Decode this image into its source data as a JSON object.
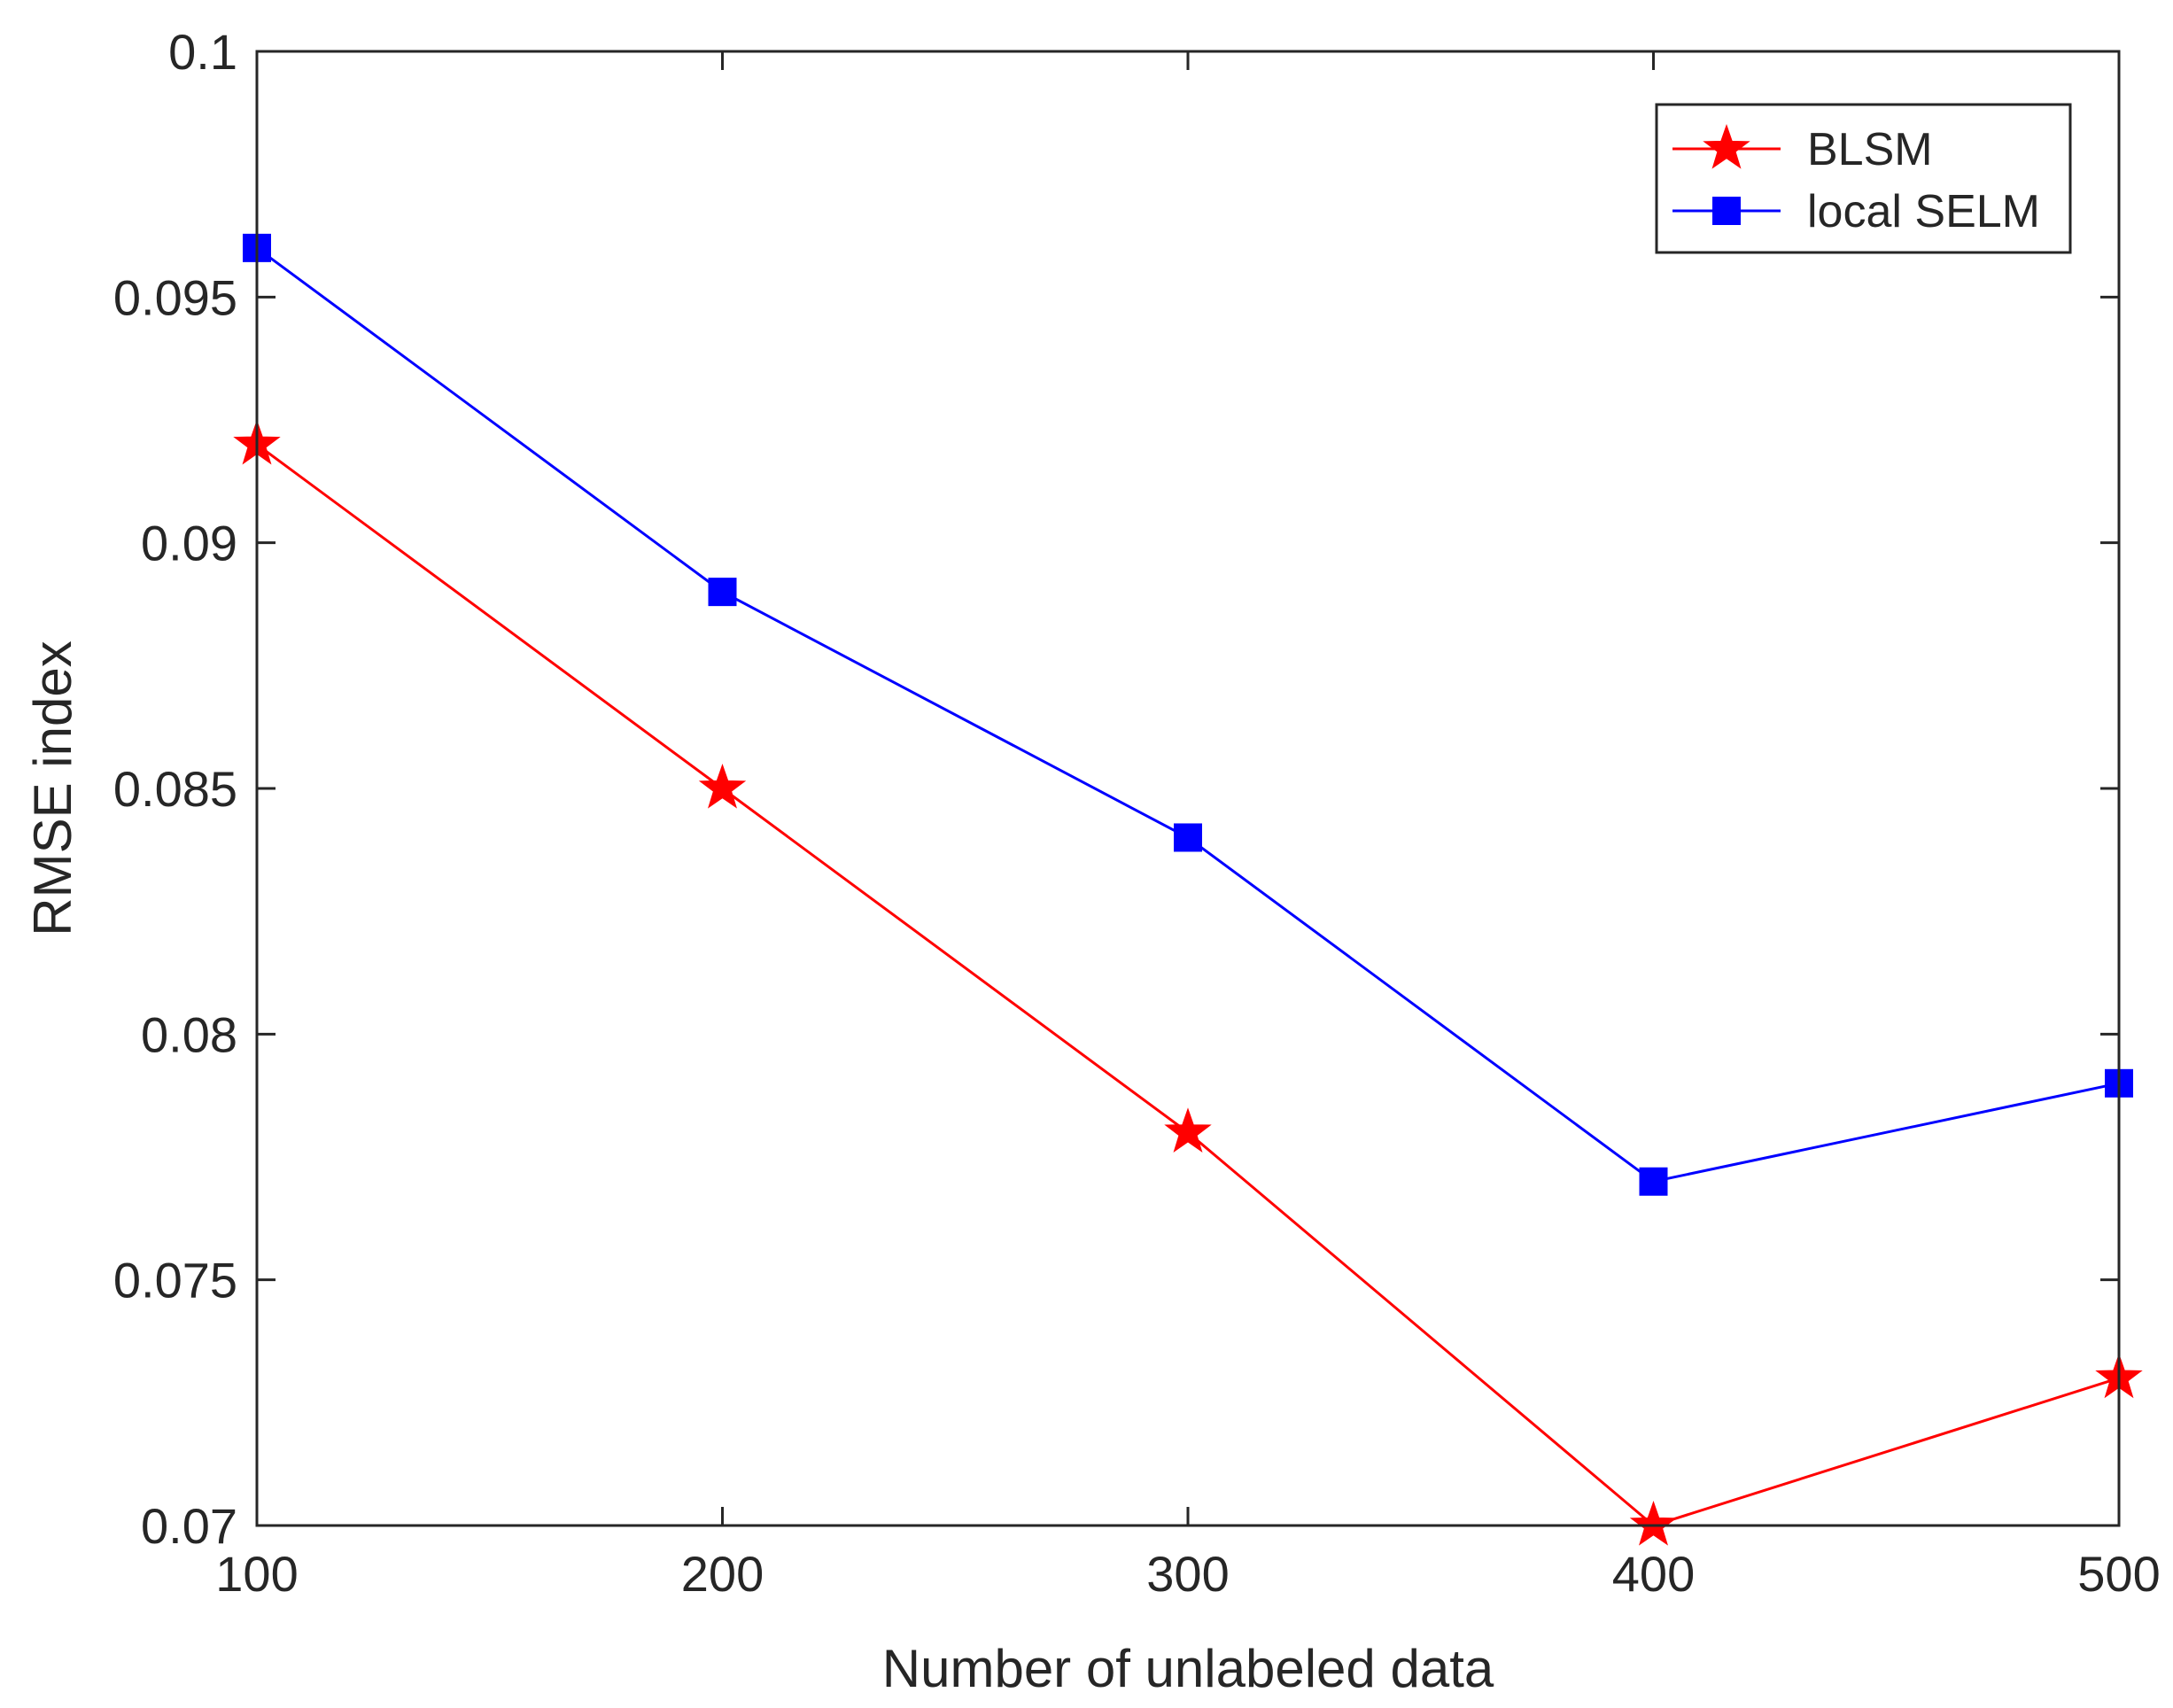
{
  "chart_data": {
    "type": "line",
    "xlabel": "Number of unlabeled data",
    "ylabel": "RMSE index",
    "xlim": [
      100,
      500
    ],
    "ylim": [
      0.07,
      0.1
    ],
    "xticks": [
      100,
      200,
      300,
      400,
      500
    ],
    "xtick_labels": [
      "100",
      "200",
      "300",
      "400",
      "500"
    ],
    "yticks": [
      0.07,
      0.075,
      0.08,
      0.085,
      0.09,
      0.095,
      0.1
    ],
    "ytick_labels": [
      "0.07",
      "0.075",
      "0.08",
      "0.085",
      "0.09",
      "0.095",
      "0.1"
    ],
    "grid": false,
    "legend_position": "top-right",
    "x": [
      100,
      200,
      300,
      400,
      500
    ],
    "series": [
      {
        "name": "BLSM",
        "values": [
          0.092,
          0.085,
          0.078,
          0.07,
          0.073
        ],
        "color": "#ff0000",
        "marker": "star"
      },
      {
        "name": "local SELM",
        "values": [
          0.096,
          0.089,
          0.084,
          0.077,
          0.079
        ],
        "color": "#0000ff",
        "marker": "square"
      }
    ]
  }
}
